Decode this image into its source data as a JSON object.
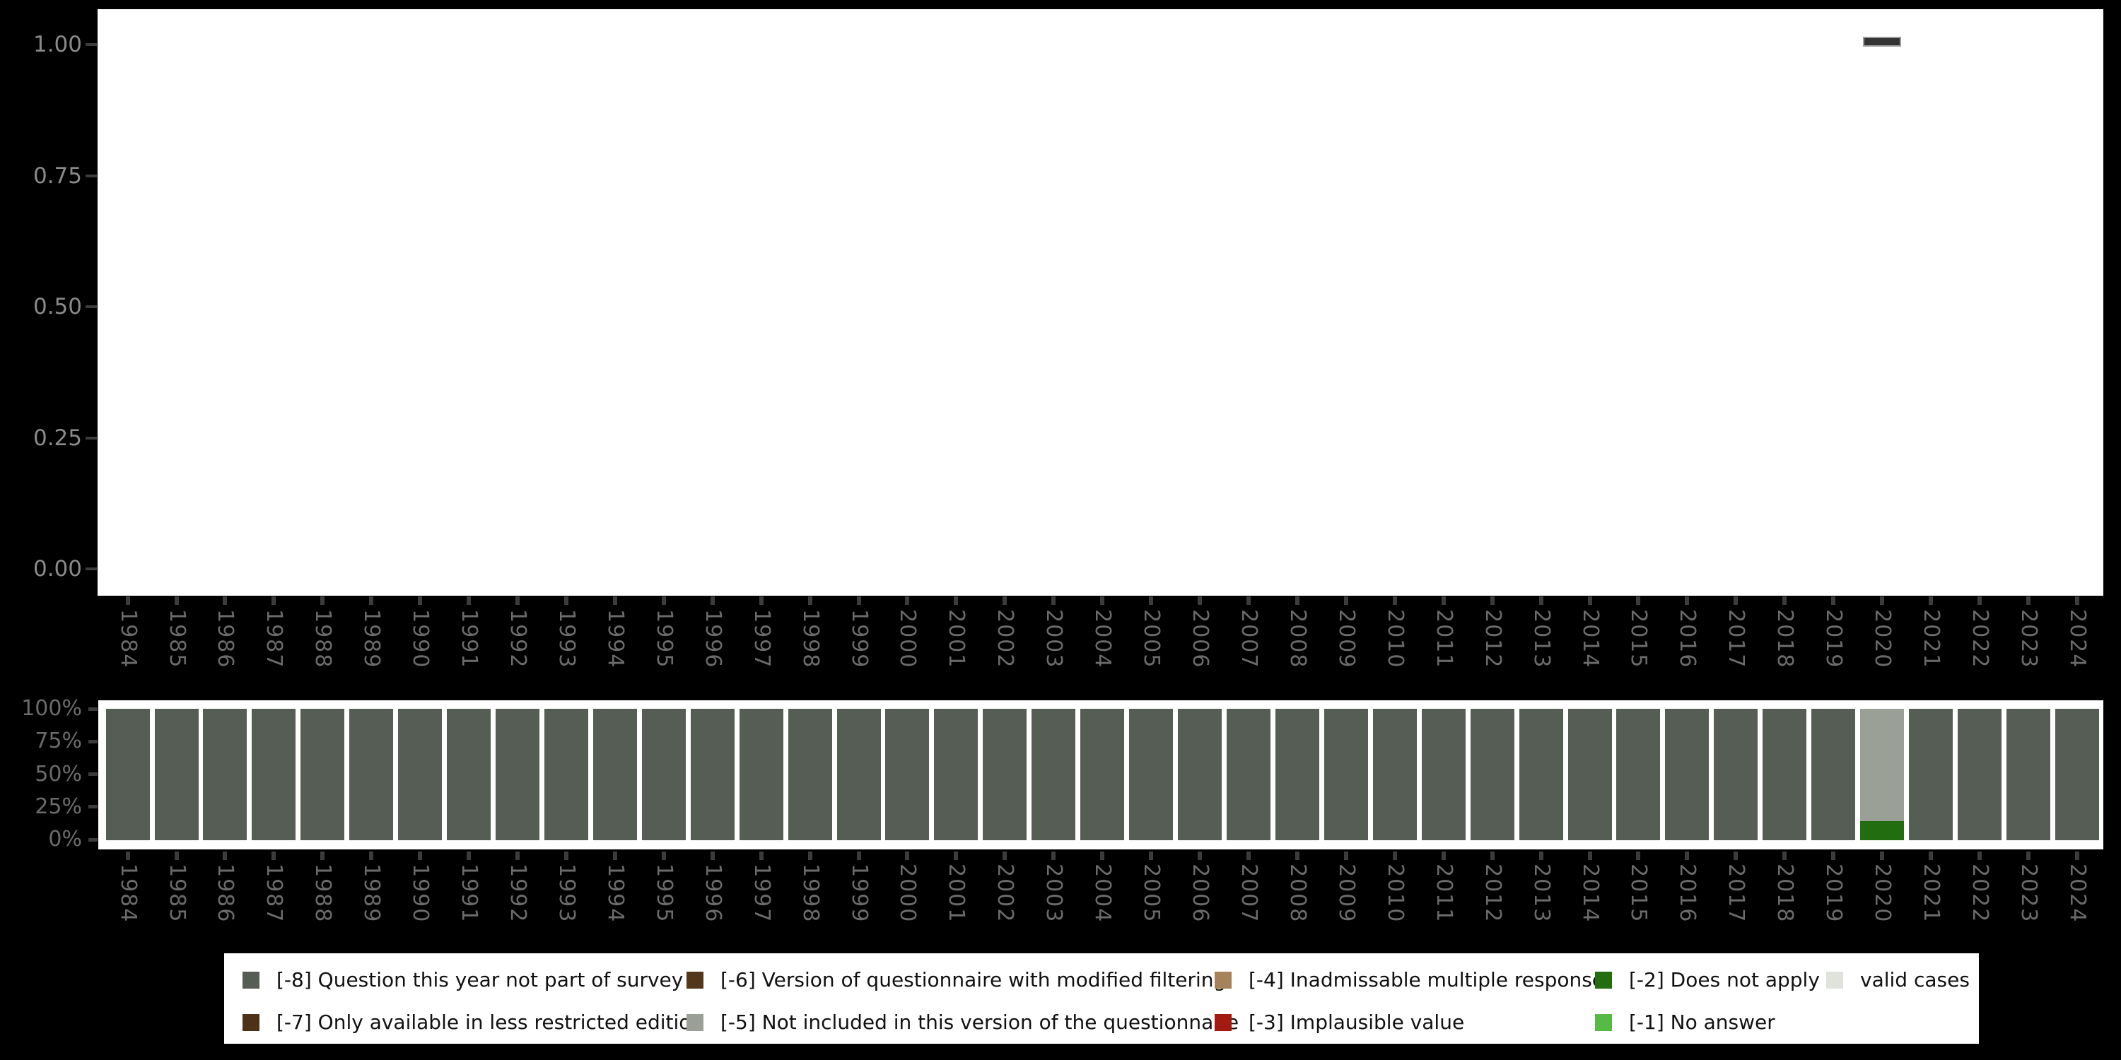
{
  "colors": {
    "background": "#000000",
    "panel": "#ffffff",
    "axis_tick": "#3C3C3C",
    "top_axis_text": "#8A8A8A",
    "bottom_axis_text": "#6B6B6B",
    "year_text": "#6B6B6B",
    "legend_text": "#111111",
    "mark_fill": "#343434",
    "mark_border": "#9C9C9C",
    "codes": {
      "-8": "#565D54",
      "-7": "#4E3218",
      "-6": "#53371B",
      "-5": "#9AA096",
      "-4": "#A5825A",
      "-3": "#A21A12",
      "-2": "#216D10",
      "-1": "#55BB45",
      "valid": "#DFE3DC"
    }
  },
  "years": [
    1984,
    1985,
    1986,
    1987,
    1988,
    1989,
    1990,
    1991,
    1992,
    1993,
    1994,
    1995,
    1996,
    1997,
    1998,
    1999,
    2000,
    2001,
    2002,
    2003,
    2004,
    2005,
    2006,
    2007,
    2008,
    2009,
    2010,
    2011,
    2012,
    2013,
    2014,
    2015,
    2016,
    2017,
    2018,
    2019,
    2020,
    2021,
    2022,
    2023,
    2024
  ],
  "top_chart": {
    "y_tick_labels": [
      "1.00",
      "0.75",
      "0.50",
      "0.25",
      "0.00"
    ],
    "mark": {
      "year": 2020,
      "value": "1.00"
    }
  },
  "bottom_chart": {
    "y_tick_labels": [
      "100%",
      "75%",
      "50%",
      "25%",
      "0%"
    ],
    "default_segments": [
      {
        "key": "-8",
        "pct": 100
      }
    ],
    "exceptions": {
      "2020": [
        {
          "key": "-5",
          "pct": 85.5
        },
        {
          "key": "-2",
          "pct": 14.5
        }
      ]
    }
  },
  "legend": {
    "columns": [
      {
        "x": 26,
        "items": [
          {
            "key": "-8",
            "label": "[-8] Question this year not part of survey",
            "row": 0
          },
          {
            "key": "-7",
            "label": "[-7] Only available in less restricted edition",
            "row": 1
          }
        ]
      },
      {
        "x": 654,
        "items": [
          {
            "key": "-6",
            "label": "[-6] Version of questionnaire with modified filtering",
            "row": 0
          },
          {
            "key": "-5",
            "label": "[-5] Not included in this version of the questionnaire",
            "row": 1
          }
        ]
      },
      {
        "x": 1401,
        "items": [
          {
            "key": "-4",
            "label": "[-4] Inadmissable multiple response",
            "row": 0
          },
          {
            "key": "-3",
            "label": "[-3] Implausible value",
            "row": 1
          }
        ]
      },
      {
        "x": 1939,
        "items": [
          {
            "key": "-2",
            "label": "[-2] Does not apply",
            "row": 0
          },
          {
            "key": "-1",
            "label": "[-1] No answer",
            "row": 1
          }
        ]
      },
      {
        "x": 2266,
        "items": [
          {
            "key": "valid",
            "label": "valid cases",
            "row": 0
          }
        ]
      }
    ]
  },
  "chart_data": [
    {
      "type": "scatter",
      "title": "",
      "xlabel": "",
      "ylabel": "",
      "x_categories": [
        1984,
        1985,
        1986,
        1987,
        1988,
        1989,
        1990,
        1991,
        1992,
        1993,
        1994,
        1995,
        1996,
        1997,
        1998,
        1999,
        2000,
        2001,
        2002,
        2003,
        2004,
        2005,
        2006,
        2007,
        2008,
        2009,
        2010,
        2011,
        2012,
        2013,
        2014,
        2015,
        2016,
        2017,
        2018,
        2019,
        2020,
        2021,
        2022,
        2023,
        2024
      ],
      "points": [
        {
          "x": 2020,
          "y": 1.0
        }
      ],
      "ylim": [
        0,
        1
      ],
      "yticks": [
        0.0,
        0.25,
        0.5,
        0.75,
        1.0
      ],
      "grid": false,
      "note": "single dark horizontal mark at year 2020, value 1.00"
    },
    {
      "type": "bar",
      "stacked": true,
      "title": "",
      "xlabel": "",
      "ylabel": "",
      "ylim": [
        0,
        100
      ],
      "yticks_percent": [
        0,
        25,
        50,
        75,
        100
      ],
      "categories": [
        1984,
        1985,
        1986,
        1987,
        1988,
        1989,
        1990,
        1991,
        1992,
        1993,
        1994,
        1995,
        1996,
        1997,
        1998,
        1999,
        2000,
        2001,
        2002,
        2003,
        2004,
        2005,
        2006,
        2007,
        2008,
        2009,
        2010,
        2011,
        2012,
        2013,
        2014,
        2015,
        2016,
        2017,
        2018,
        2019,
        2020,
        2021,
        2022,
        2023,
        2024
      ],
      "series": [
        {
          "name": "[-8] Question this year not part of survey",
          "values": [
            100,
            100,
            100,
            100,
            100,
            100,
            100,
            100,
            100,
            100,
            100,
            100,
            100,
            100,
            100,
            100,
            100,
            100,
            100,
            100,
            100,
            100,
            100,
            100,
            100,
            100,
            100,
            100,
            100,
            100,
            100,
            100,
            100,
            100,
            100,
            100,
            0,
            100,
            100,
            100,
            100
          ]
        },
        {
          "name": "[-5] Not included in this version of the questionnaire",
          "values": [
            0,
            0,
            0,
            0,
            0,
            0,
            0,
            0,
            0,
            0,
            0,
            0,
            0,
            0,
            0,
            0,
            0,
            0,
            0,
            0,
            0,
            0,
            0,
            0,
            0,
            0,
            0,
            0,
            0,
            0,
            0,
            0,
            0,
            0,
            0,
            0,
            85.5,
            0,
            0,
            0,
            0
          ]
        },
        {
          "name": "[-2] Does not apply",
          "values": [
            0,
            0,
            0,
            0,
            0,
            0,
            0,
            0,
            0,
            0,
            0,
            0,
            0,
            0,
            0,
            0,
            0,
            0,
            0,
            0,
            0,
            0,
            0,
            0,
            0,
            0,
            0,
            0,
            0,
            0,
            0,
            0,
            0,
            0,
            0,
            0,
            14.5,
            0,
            0,
            0,
            0
          ]
        }
      ],
      "legend_position": "bottom",
      "grid": false
    }
  ]
}
